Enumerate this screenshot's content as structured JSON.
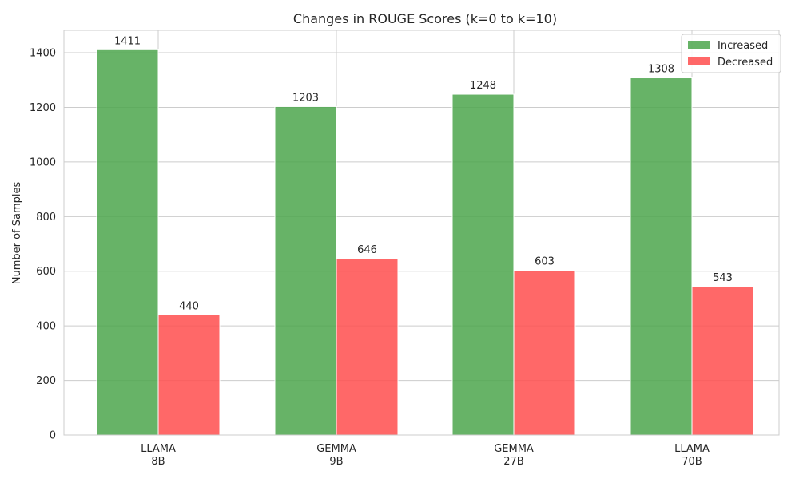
{
  "chart_data": {
    "type": "bar",
    "title": "Changes in ROUGE Scores (k=0 to k=10)",
    "xlabel": "",
    "ylabel": "Number of Samples",
    "categories": [
      [
        "LLAMA",
        "8B"
      ],
      [
        "GEMMA",
        "9B"
      ],
      [
        "GEMMA",
        "27B"
      ],
      [
        "LLAMA",
        "70B"
      ]
    ],
    "series": [
      {
        "name": "Increased",
        "values": [
          1411,
          1203,
          1248,
          1308
        ],
        "color": "#4ca64c"
      },
      {
        "name": "Decreased",
        "values": [
          440,
          646,
          603,
          543
        ],
        "color": "#ff4d4d"
      }
    ],
    "ylim": [
      0,
      1482
    ],
    "yticks": [
      0,
      200,
      400,
      600,
      800,
      1000,
      1200,
      1400
    ],
    "grid": true,
    "legend": "top-right"
  }
}
